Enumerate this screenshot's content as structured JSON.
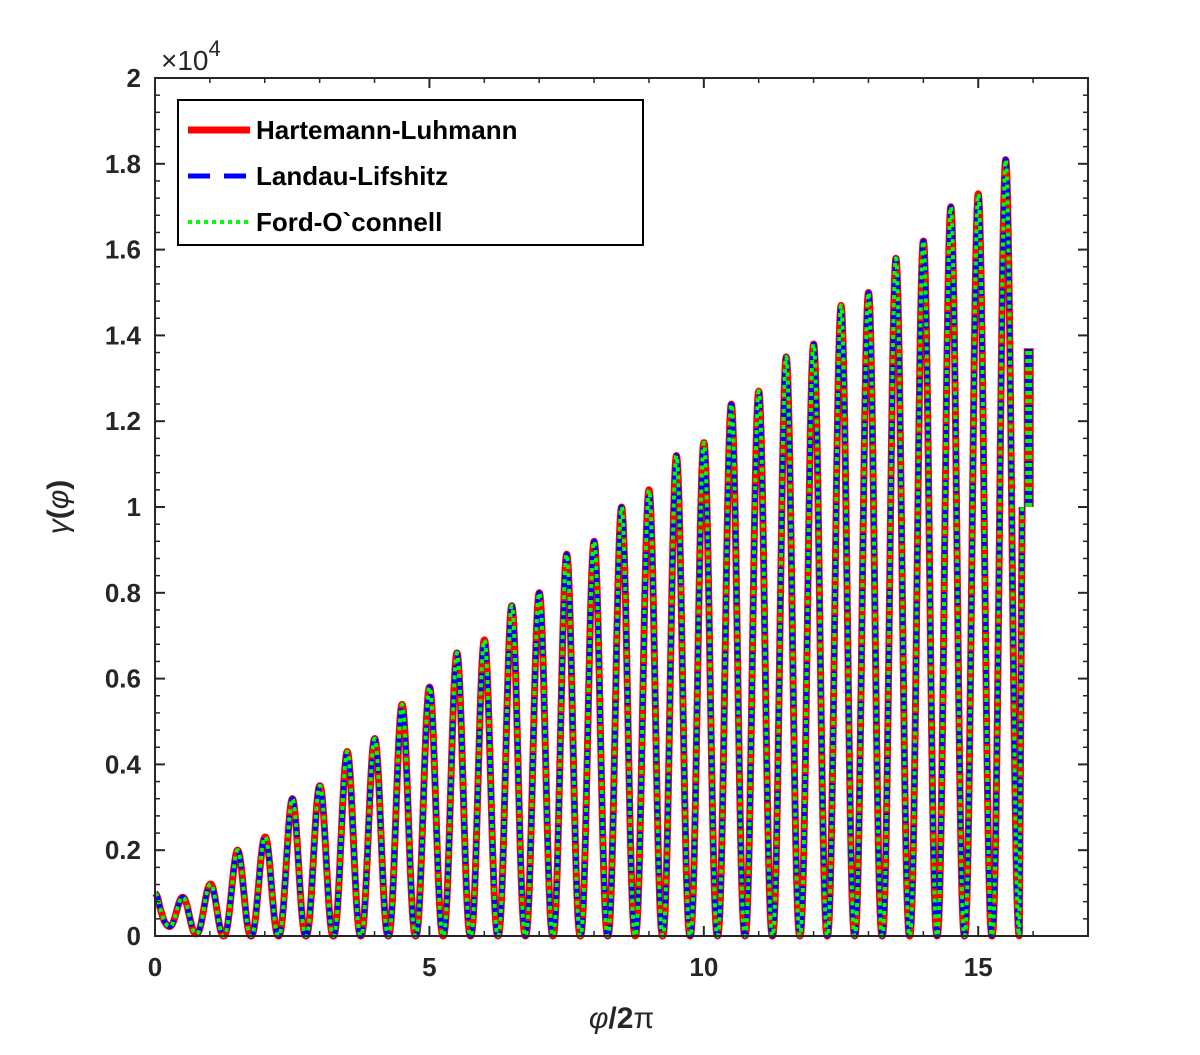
{
  "chart_data": {
    "type": "line",
    "title": "",
    "xlabel_parts": [
      "φ",
      "/2",
      "π"
    ],
    "ylabel_parts": [
      "γ",
      "(",
      "φ",
      ")"
    ],
    "exponent_label": {
      "prefix": "×10",
      "power": "4"
    },
    "xlim": [
      0,
      17
    ],
    "ylim": [
      0,
      20000
    ],
    "x_ticks": [
      0,
      5,
      10,
      15
    ],
    "x_tick_labels": [
      "0",
      "5",
      "10",
      "15"
    ],
    "y_ticks": [
      0,
      2000,
      4000,
      6000,
      8000,
      10000,
      12000,
      14000,
      16000,
      18000,
      20000
    ],
    "y_tick_labels": [
      "0",
      "0.2",
      "0.4",
      "0.6",
      "0.8",
      "1",
      "1.2",
      "1.4",
      "1.6",
      "1.8",
      "2"
    ],
    "grid": false,
    "legend_position": "top-left",
    "colors": {
      "hartemann": "#ff0000",
      "landau": "#0000ff",
      "ford": "#00ff00",
      "axis": "#262626"
    },
    "series": [
      {
        "name": "Hartemann-Luhmann",
        "style": "solid",
        "color": "#ff0000"
      },
      {
        "name": "Landau-Lifshitz",
        "style": "dashed",
        "color": "#0000ff"
      },
      {
        "name": "Ford-O`connell",
        "style": "dotted",
        "color": "#00ff00"
      }
    ],
    "oscillation": {
      "x_start": 0,
      "x_end": 15.8,
      "period": 0.5,
      "start_value": 1000,
      "end_value": 10000,
      "peaks": [
        {
          "x": 0.5,
          "y": 900
        },
        {
          "x": 1.0,
          "y": 1200
        },
        {
          "x": 1.5,
          "y": 2000
        },
        {
          "x": 2.0,
          "y": 2300
        },
        {
          "x": 2.5,
          "y": 3200
        },
        {
          "x": 3.0,
          "y": 3500
        },
        {
          "x": 3.5,
          "y": 4300
        },
        {
          "x": 4.0,
          "y": 4600
        },
        {
          "x": 4.5,
          "y": 5400
        },
        {
          "x": 5.0,
          "y": 5800
        },
        {
          "x": 5.5,
          "y": 6600
        },
        {
          "x": 6.0,
          "y": 6900
        },
        {
          "x": 6.5,
          "y": 7700
        },
        {
          "x": 7.0,
          "y": 8000
        },
        {
          "x": 7.5,
          "y": 8900
        },
        {
          "x": 8.0,
          "y": 9200
        },
        {
          "x": 8.5,
          "y": 10000
        },
        {
          "x": 9.0,
          "y": 10400
        },
        {
          "x": 9.5,
          "y": 11200
        },
        {
          "x": 10.0,
          "y": 11500
        },
        {
          "x": 10.5,
          "y": 12400
        },
        {
          "x": 11.0,
          "y": 12700
        },
        {
          "x": 11.5,
          "y": 13500
        },
        {
          "x": 12.0,
          "y": 13800
        },
        {
          "x": 12.5,
          "y": 14700
        },
        {
          "x": 13.0,
          "y": 15000
        },
        {
          "x": 13.5,
          "y": 15800
        },
        {
          "x": 14.0,
          "y": 16200
        },
        {
          "x": 14.5,
          "y": 17000
        },
        {
          "x": 15.0,
          "y": 17300
        },
        {
          "x": 15.5,
          "y": 18100
        }
      ],
      "early_troughs": [
        {
          "x": 0.2,
          "y": 250
        },
        {
          "x": 0.75,
          "y": 50
        }
      ]
    },
    "end_segment": {
      "x": 15.92,
      "y_from": 10000,
      "y_to": 13700
    }
  }
}
